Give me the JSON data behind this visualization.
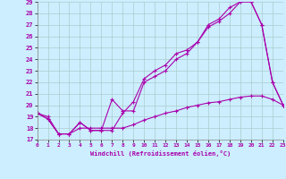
{
  "xlabel": "Windchill (Refroidissement éolien,°C)",
  "xlim": [
    0,
    23
  ],
  "ylim": [
    17,
    29
  ],
  "xticks": [
    0,
    1,
    2,
    3,
    4,
    5,
    6,
    7,
    8,
    9,
    10,
    11,
    12,
    13,
    14,
    15,
    16,
    17,
    18,
    19,
    20,
    21,
    22,
    23
  ],
  "yticks": [
    17,
    18,
    19,
    20,
    21,
    22,
    23,
    24,
    25,
    26,
    27,
    28,
    29
  ],
  "bg_color": "#cceeff",
  "grid_color": "#aacccc",
  "line_color": "#aa00aa",
  "line1_x": [
    0,
    1,
    2,
    3,
    4,
    5,
    6,
    7,
    8,
    9,
    10,
    11,
    12,
    13,
    14,
    15,
    16,
    17,
    18,
    19,
    20,
    21,
    22,
    23
  ],
  "line1_y": [
    19.3,
    19.0,
    17.5,
    17.5,
    18.5,
    17.8,
    17.8,
    17.8,
    19.3,
    20.3,
    22.3,
    23.0,
    23.5,
    24.5,
    24.8,
    25.5,
    27.0,
    27.5,
    28.5,
    29.0,
    29.0,
    27.0,
    22.0,
    20.0
  ],
  "line2_x": [
    0,
    1,
    2,
    3,
    4,
    5,
    6,
    7,
    8,
    9,
    10,
    11,
    12,
    13,
    14,
    15,
    16,
    17,
    18,
    19,
    20,
    21,
    22,
    23
  ],
  "line2_y": [
    19.3,
    18.8,
    17.5,
    17.5,
    18.5,
    17.8,
    17.8,
    20.5,
    19.5,
    19.5,
    22.0,
    22.5,
    23.0,
    24.0,
    24.5,
    25.5,
    26.8,
    27.3,
    28.0,
    29.0,
    29.0,
    27.0,
    22.0,
    20.0
  ],
  "line3_x": [
    0,
    1,
    2,
    3,
    4,
    5,
    6,
    7,
    8,
    9,
    10,
    11,
    12,
    13,
    14,
    15,
    16,
    17,
    18,
    19,
    20,
    21,
    22,
    23
  ],
  "line3_y": [
    19.3,
    18.8,
    17.5,
    17.5,
    18.0,
    18.0,
    18.0,
    18.0,
    18.0,
    18.3,
    18.7,
    19.0,
    19.3,
    19.5,
    19.8,
    20.0,
    20.2,
    20.3,
    20.5,
    20.7,
    20.8,
    20.8,
    20.5,
    20.0
  ]
}
